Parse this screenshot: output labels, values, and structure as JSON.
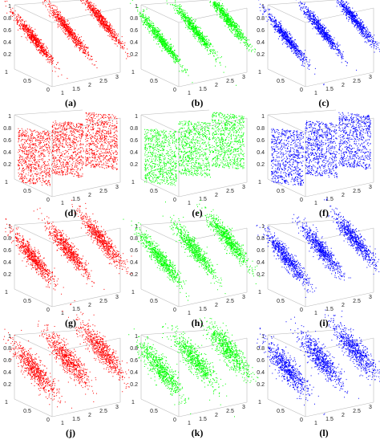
{
  "panels": [
    {
      "caption": "(a)",
      "color": "#ff0000",
      "pattern": "ellipse"
    },
    {
      "caption": "(b)",
      "color": "#00ff00",
      "pattern": "ellipse"
    },
    {
      "caption": "(c)",
      "color": "#0000ff",
      "pattern": "ellipse"
    },
    {
      "caption": "(d)",
      "color": "#ff0000",
      "pattern": "plane"
    },
    {
      "caption": "(e)",
      "color": "#00ff00",
      "pattern": "plane"
    },
    {
      "caption": "(f)",
      "color": "#0000ff",
      "pattern": "plane"
    },
    {
      "caption": "(g)",
      "color": "#ff0000",
      "pattern": "ellipse"
    },
    {
      "caption": "(h)",
      "color": "#00ff00",
      "pattern": "ellipse"
    },
    {
      "caption": "(i)",
      "color": "#0000ff",
      "pattern": "ellipse"
    },
    {
      "caption": "(j)",
      "color": "#ff0000",
      "pattern": "ellipse"
    },
    {
      "caption": "(k)",
      "color": "#00ff00",
      "pattern": "ellipse"
    },
    {
      "caption": "(l)",
      "color": "#0000ff",
      "pattern": "ellipse"
    }
  ],
  "zticks": [
    "1",
    "0.8",
    "0.6",
    "0.4",
    "0.2"
  ],
  "yticks": [
    "1",
    "0.5",
    "0"
  ],
  "xticks": [
    "1",
    "1.5",
    "2",
    "2.5",
    "3"
  ]
}
